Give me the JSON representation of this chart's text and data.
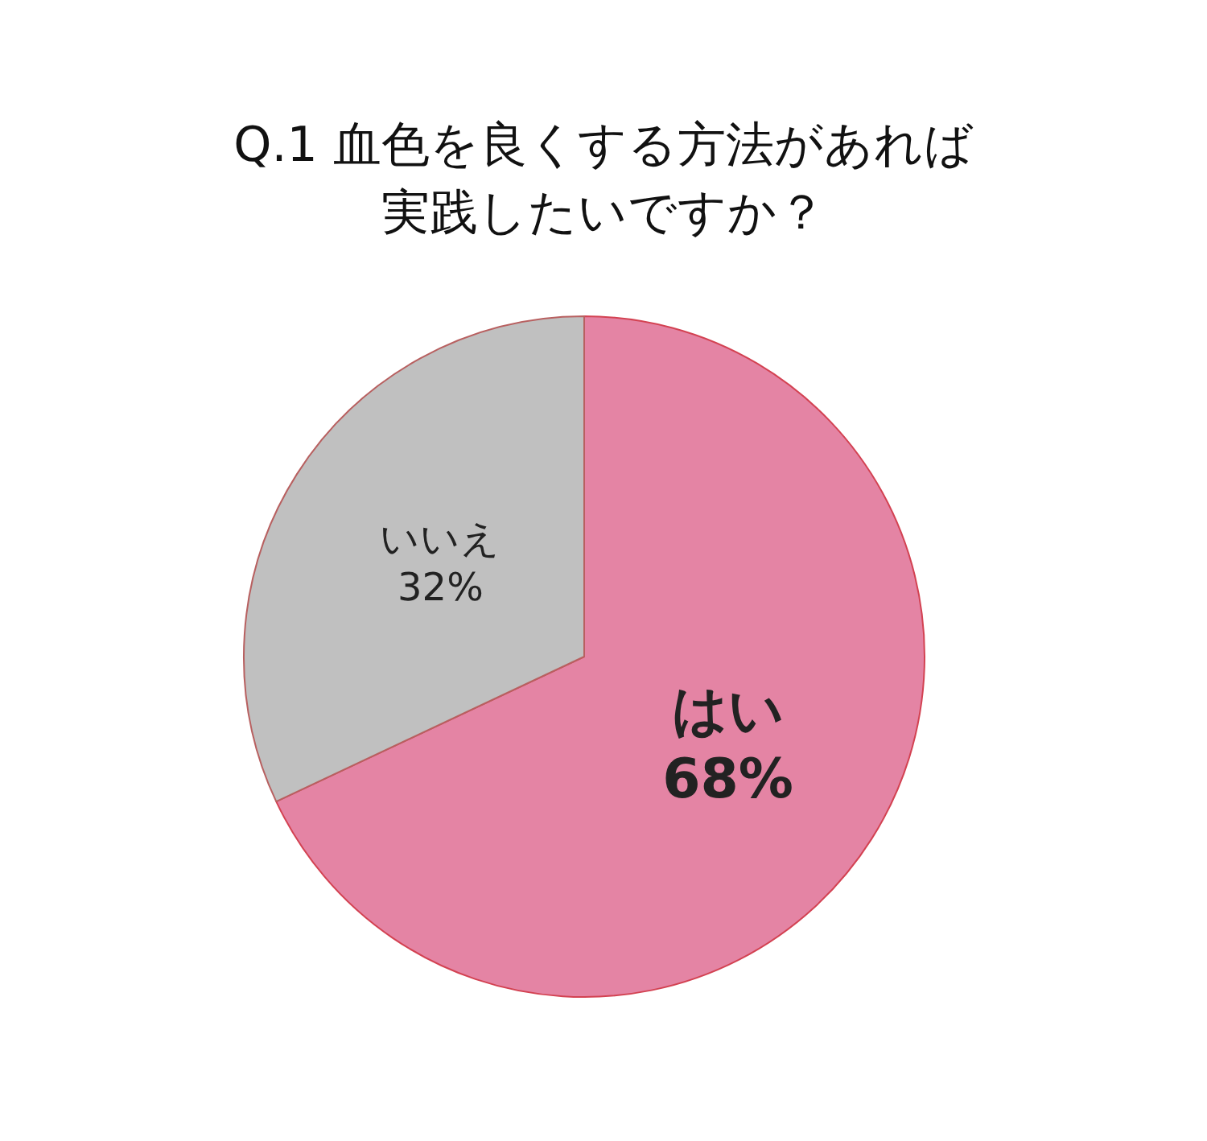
{
  "chart_data": {
    "type": "pie",
    "title": "Q.1 血色を良くする方法があれば実践したいですか？",
    "categories": [
      "はい",
      "いいえ"
    ],
    "values": [
      68,
      32
    ],
    "colors": [
      "#e484a4",
      "#c0c0c0"
    ],
    "value_labels": [
      "68%",
      "32%"
    ],
    "legend": false
  }
}
